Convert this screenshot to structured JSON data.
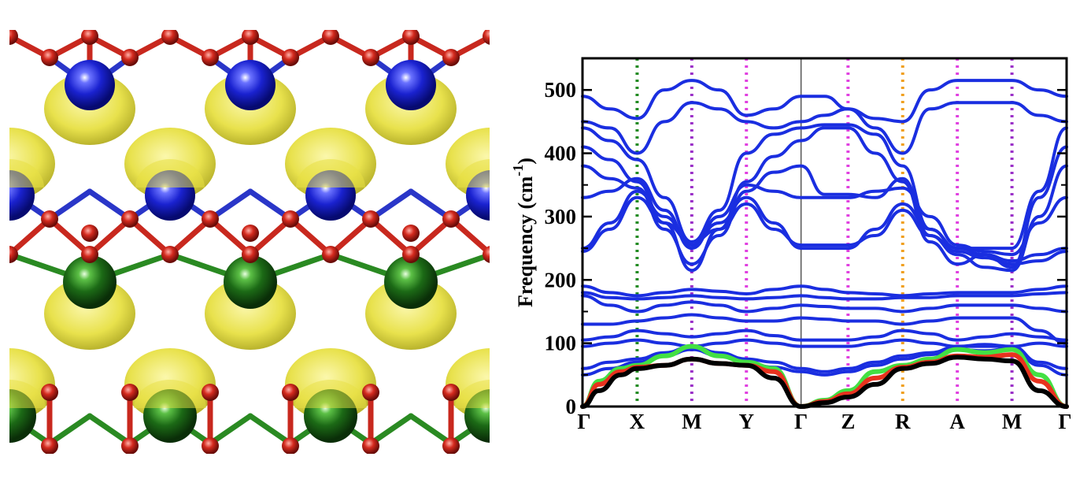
{
  "crystal": {
    "colors": {
      "oxygen": "#d42a1e",
      "blue_atom": "#1a22d0",
      "green_atom": "#1c6a16",
      "isosurface": "#e7e043",
      "bond_red": "#c8281e",
      "bond_blue": "#2a36c8",
      "bond_green": "#2a8a22"
    }
  },
  "chart_data": {
    "type": "line",
    "title": "",
    "xlabel": "",
    "ylabel": "Frequency (cm",
    "ylabel_superscript": "-1",
    "ylabel_close": ")",
    "ylim": [
      0,
      550
    ],
    "yticks": [
      0,
      100,
      200,
      300,
      400,
      500
    ],
    "kpoints": [
      {
        "label": "Γ",
        "x": 0.0
      },
      {
        "label": "X",
        "x": 1.0
      },
      {
        "label": "M",
        "x": 2.0
      },
      {
        "label": "Y",
        "x": 3.0
      },
      {
        "label": "Γ",
        "x": 4.0
      },
      {
        "label": "Z",
        "x": 4.86
      },
      {
        "label": "R",
        "x": 5.86
      },
      {
        "label": "A",
        "x": 6.86
      },
      {
        "label": "M",
        "x": 7.86
      },
      {
        "label": "Γ",
        "x": 8.86
      }
    ],
    "xlim": [
      0,
      8.86
    ],
    "kpoint_line_colors": [
      "#228b22",
      "#9b30c8",
      "#e040e0",
      "#555555",
      "#e040e0",
      "#f0a020",
      "#e040e0",
      "#9b30c8"
    ],
    "series": [
      {
        "color": "#1a2ee0",
        "x": [
          0,
          0.5,
          1,
          1.5,
          2,
          2.5,
          3,
          3.5,
          4,
          4.43,
          4.86,
          5.36,
          5.86,
          6.36,
          6.86,
          7.36,
          7.86,
          8.36,
          8.86
        ],
        "y": [
          490,
          470,
          455,
          500,
          515,
          500,
          460,
          470,
          490,
          490,
          470,
          455,
          450,
          500,
          515,
          515,
          515,
          500,
          490
        ]
      },
      {
        "color": "#1a2ee0",
        "x": [
          0,
          0.5,
          1,
          1.5,
          2,
          2.5,
          3,
          3.5,
          4,
          4.43,
          4.86,
          5.36,
          5.86,
          6.36,
          6.86,
          7.36,
          7.86,
          8.36,
          8.86
        ],
        "y": [
          450,
          440,
          400,
          450,
          480,
          470,
          450,
          440,
          450,
          460,
          470,
          440,
          400,
          470,
          480,
          480,
          480,
          460,
          450
        ]
      },
      {
        "color": "#1a2ee0",
        "x": [
          0,
          0.5,
          1,
          1.5,
          2,
          2.5,
          3,
          3.5,
          4,
          4.43,
          4.86,
          5.36,
          5.86,
          6.36,
          6.86,
          7.36,
          7.86,
          8.36,
          8.86
        ],
        "y": [
          440,
          420,
          390,
          330,
          260,
          310,
          400,
          430,
          440,
          445,
          445,
          430,
          380,
          280,
          250,
          250,
          250,
          340,
          440
        ]
      },
      {
        "color": "#1a2ee0",
        "x": [
          0,
          0.5,
          1,
          1.5,
          2,
          2.5,
          3,
          3.5,
          4,
          4.43,
          4.86,
          5.36,
          5.86,
          6.36,
          6.86,
          7.36,
          7.86,
          8.36,
          8.86
        ],
        "y": [
          410,
          390,
          355,
          290,
          215,
          280,
          355,
          395,
          420,
          440,
          440,
          400,
          355,
          260,
          225,
          240,
          220,
          330,
          410
        ]
      },
      {
        "color": "#1a2ee0",
        "x": [
          0,
          0.5,
          1,
          1.5,
          2,
          2.5,
          3,
          3.5,
          4,
          4.43,
          4.86,
          5.36,
          5.86,
          6.36,
          6.86,
          7.36,
          7.86,
          8.36,
          8.86
        ],
        "y": [
          380,
          360,
          345,
          280,
          225,
          270,
          340,
          370,
          380,
          335,
          335,
          330,
          360,
          270,
          240,
          220,
          215,
          300,
          380
        ]
      },
      {
        "color": "#1a2ee0",
        "x": [
          0,
          0.5,
          1,
          1.5,
          2,
          2.5,
          3,
          3.5,
          4,
          4.43,
          4.86,
          5.36,
          5.86,
          6.36,
          6.86,
          7.36,
          7.86,
          8.36,
          8.86
        ],
        "y": [
          330,
          340,
          360,
          310,
          250,
          300,
          350,
          340,
          330,
          330,
          330,
          340,
          345,
          300,
          255,
          245,
          240,
          290,
          330
        ]
      },
      {
        "color": "#1a2ee0",
        "x": [
          0,
          0.5,
          1,
          1.5,
          2,
          2.5,
          3,
          3.5,
          4,
          4.43,
          4.86,
          5.36,
          5.86,
          6.36,
          6.86,
          7.36,
          7.86,
          8.36,
          8.86
        ],
        "y": [
          250,
          290,
          340,
          300,
          255,
          290,
          330,
          290,
          250,
          250,
          250,
          280,
          320,
          280,
          250,
          240,
          230,
          240,
          250
        ]
      },
      {
        "color": "#1a2ee0",
        "x": [
          0,
          0.5,
          1,
          1.5,
          2,
          2.5,
          3,
          3.5,
          4,
          4.43,
          4.86,
          5.36,
          5.86,
          6.36,
          6.86,
          7.36,
          7.86,
          8.36,
          8.86
        ],
        "y": [
          245,
          280,
          330,
          290,
          260,
          280,
          320,
          280,
          255,
          255,
          255,
          270,
          310,
          270,
          245,
          235,
          225,
          230,
          245
        ]
      },
      {
        "color": "#1a2ee0",
        "x": [
          0,
          0.5,
          1,
          1.5,
          2,
          2.5,
          3,
          3.5,
          4,
          4.43,
          4.86,
          5.36,
          5.86,
          6.36,
          6.86,
          7.36,
          7.86,
          8.36,
          8.86
        ],
        "y": [
          190,
          180,
          175,
          180,
          185,
          182,
          178,
          185,
          190,
          185,
          180,
          178,
          175,
          178,
          180,
          180,
          180,
          185,
          190
        ]
      },
      {
        "color": "#1a2ee0",
        "x": [
          0,
          0.5,
          1,
          1.5,
          2,
          2.5,
          3,
          3.5,
          4,
          4.43,
          4.86,
          5.36,
          5.86,
          6.36,
          6.86,
          7.36,
          7.86,
          8.36,
          8.86
        ],
        "y": [
          180,
          172,
          170,
          172,
          175,
          172,
          170,
          172,
          175,
          172,
          170,
          170,
          172,
          172,
          175,
          175,
          175,
          178,
          180
        ]
      },
      {
        "color": "#1a2ee0",
        "x": [
          0,
          0.5,
          1,
          1.5,
          2,
          2.5,
          3,
          3.5,
          4,
          4.43,
          4.86,
          5.36,
          5.86,
          6.36,
          6.86,
          7.36,
          7.86,
          8.36,
          8.86
        ],
        "y": [
          175,
          160,
          150,
          160,
          165,
          160,
          150,
          155,
          160,
          158,
          155,
          155,
          150,
          155,
          160,
          160,
          160,
          155,
          150
        ]
      },
      {
        "color": "#1a2ee0",
        "x": [
          0,
          0.5,
          1,
          1.5,
          2,
          2.5,
          3,
          3.5,
          4,
          4.43,
          4.86,
          5.36,
          5.86,
          6.36,
          6.86,
          7.36,
          7.86,
          8.36,
          8.86
        ],
        "y": [
          130,
          130,
          135,
          140,
          145,
          140,
          135,
          135,
          140,
          138,
          135,
          135,
          130,
          135,
          140,
          140,
          140,
          120,
          100
        ]
      },
      {
        "color": "#1a2ee0",
        "x": [
          0,
          0.5,
          1,
          1.5,
          2,
          2.5,
          3,
          3.5,
          4,
          4.43,
          4.86,
          5.36,
          5.86,
          6.36,
          6.86,
          7.36,
          7.86,
          8.36,
          8.86
        ],
        "y": [
          105,
          110,
          120,
          115,
          110,
          115,
          120,
          112,
          105,
          105,
          105,
          110,
          120,
          115,
          105,
          110,
          115,
          110,
          105
        ]
      },
      {
        "color": "#1a2ee0",
        "x": [
          0,
          0.5,
          1,
          1.5,
          2,
          2.5,
          3,
          3.5,
          4,
          4.43,
          4.86,
          5.36,
          5.86,
          6.36,
          6.86,
          7.36,
          7.86,
          8.36,
          8.86
        ],
        "y": [
          95,
          100,
          105,
          100,
          95,
          100,
          105,
          100,
          95,
          95,
          95,
          100,
          105,
          100,
          95,
          98,
          95,
          100,
          95
        ]
      },
      {
        "color": "#1a2ee0",
        "x": [
          0,
          0.5,
          1,
          1.5,
          2,
          2.5,
          3,
          3.5,
          4,
          4.43,
          4.86,
          5.36,
          5.86,
          6.36,
          6.86,
          7.36,
          7.86,
          8.36,
          8.86
        ],
        "y": [
          60,
          70,
          75,
          85,
          95,
          85,
          75,
          70,
          60,
          55,
          60,
          70,
          80,
          85,
          95,
          95,
          95,
          70,
          60
        ]
      },
      {
        "color": "#1a2ee0",
        "x": [
          0,
          0.5,
          1,
          1.5,
          2,
          2.5,
          3,
          3.5,
          4,
          4.43,
          4.86,
          5.36,
          5.86,
          6.36,
          6.86,
          7.36,
          7.86,
          8.36,
          8.86
        ],
        "y": [
          50,
          60,
          70,
          80,
          90,
          80,
          70,
          62,
          55,
          50,
          55,
          65,
          75,
          82,
          90,
          88,
          92,
          65,
          50
        ]
      },
      {
        "color": "#43e043",
        "x": [
          0,
          0.3,
          0.7,
          1,
          1.5,
          2,
          2.5,
          3,
          3.5,
          4,
          4.43,
          4.86,
          5.36,
          5.86,
          6.36,
          6.86,
          7.36,
          7.86,
          8.36,
          8.86
        ],
        "y": [
          0,
          40,
          60,
          65,
          80,
          95,
          80,
          70,
          60,
          0,
          10,
          25,
          55,
          65,
          75,
          90,
          85,
          90,
          50,
          0
        ]
      },
      {
        "color": "#e8321e",
        "x": [
          0,
          0.3,
          0.7,
          1,
          1.5,
          2,
          2.5,
          3,
          3.5,
          4,
          4.43,
          4.86,
          5.36,
          5.86,
          6.36,
          6.86,
          7.36,
          7.86,
          8.36,
          8.86
        ],
        "y": [
          0,
          35,
          55,
          62,
          65,
          75,
          68,
          65,
          55,
          0,
          8,
          20,
          45,
          62,
          70,
          80,
          78,
          82,
          40,
          0
        ]
      },
      {
        "color": "#000000",
        "x": [
          0,
          0.3,
          0.7,
          1,
          1.5,
          2,
          2.5,
          3,
          3.5,
          4,
          4.43,
          4.86,
          5.36,
          5.86,
          6.36,
          6.86,
          7.36,
          7.86,
          8.36,
          8.86
        ],
        "y": [
          0,
          25,
          50,
          60,
          65,
          75,
          68,
          65,
          45,
          0,
          6,
          15,
          35,
          60,
          68,
          78,
          75,
          72,
          25,
          0
        ]
      }
    ]
  }
}
